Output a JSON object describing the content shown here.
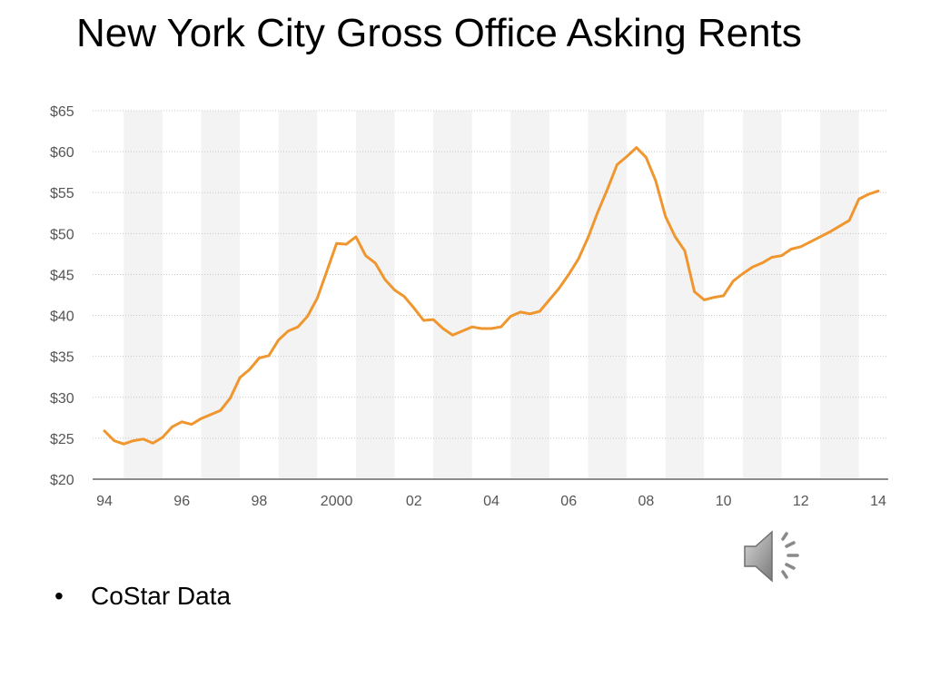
{
  "slide": {
    "title": "New York City Gross Office Asking Rents",
    "bullets": [
      {
        "marker": "•",
        "text": "CoStar Data"
      }
    ],
    "media_icon": "speaker-icon"
  },
  "chart_data": {
    "type": "line",
    "title": "",
    "xlabel": "",
    "ylabel": "",
    "x_tick_labels": [
      "94",
      "96",
      "98",
      "2000",
      "02",
      "04",
      "06",
      "08",
      "10",
      "12",
      "14"
    ],
    "x_tick_values": [
      1994,
      1996,
      1998,
      2000,
      2002,
      2004,
      2006,
      2008,
      2010,
      2012,
      2014
    ],
    "xlim": [
      1994,
      2014
    ],
    "y_tick_labels": [
      "$20",
      "$25",
      "$30",
      "$35",
      "$40",
      "$45",
      "$50",
      "$55",
      "$60",
      "$65"
    ],
    "y_tick_values": [
      20,
      25,
      30,
      35,
      40,
      45,
      50,
      55,
      60,
      65
    ],
    "ylim": [
      20,
      65
    ],
    "grid": "horizontal dotted lines, alternating shaded year bands",
    "series": [
      {
        "color": "#F0962E",
        "points": [
          [
            1994.0,
            25.9
          ],
          [
            1994.25,
            24.7
          ],
          [
            1994.5,
            24.3
          ],
          [
            1994.75,
            24.7
          ],
          [
            1995.0,
            24.9
          ],
          [
            1995.25,
            24.4
          ],
          [
            1995.5,
            25.1
          ],
          [
            1995.75,
            26.4
          ],
          [
            1996.0,
            27.0
          ],
          [
            1996.25,
            26.7
          ],
          [
            1996.5,
            27.4
          ],
          [
            1996.75,
            27.9
          ],
          [
            1997.0,
            28.4
          ],
          [
            1997.25,
            29.9
          ],
          [
            1997.5,
            32.4
          ],
          [
            1997.75,
            33.4
          ],
          [
            1998.0,
            34.8
          ],
          [
            1998.25,
            35.1
          ],
          [
            1998.5,
            37.0
          ],
          [
            1998.75,
            38.1
          ],
          [
            1999.0,
            38.6
          ],
          [
            1999.25,
            39.9
          ],
          [
            1999.5,
            42.1
          ],
          [
            1999.75,
            45.4
          ],
          [
            2000.0,
            48.8
          ],
          [
            2000.25,
            48.7
          ],
          [
            2000.5,
            49.6
          ],
          [
            2000.75,
            47.3
          ],
          [
            2001.0,
            46.4
          ],
          [
            2001.25,
            44.4
          ],
          [
            2001.5,
            43.1
          ],
          [
            2001.75,
            42.3
          ],
          [
            2002.0,
            40.9
          ],
          [
            2002.25,
            39.4
          ],
          [
            2002.5,
            39.5
          ],
          [
            2002.75,
            38.4
          ],
          [
            2003.0,
            37.6
          ],
          [
            2003.25,
            38.1
          ],
          [
            2003.5,
            38.6
          ],
          [
            2003.75,
            38.4
          ],
          [
            2004.0,
            38.4
          ],
          [
            2004.25,
            38.6
          ],
          [
            2004.5,
            39.9
          ],
          [
            2004.75,
            40.4
          ],
          [
            2005.0,
            40.2
          ],
          [
            2005.25,
            40.5
          ],
          [
            2005.5,
            41.9
          ],
          [
            2005.75,
            43.3
          ],
          [
            2006.0,
            45.0
          ],
          [
            2006.25,
            46.9
          ],
          [
            2006.5,
            49.5
          ],
          [
            2006.75,
            52.6
          ],
          [
            2007.0,
            55.4
          ],
          [
            2007.25,
            58.4
          ],
          [
            2007.5,
            59.4
          ],
          [
            2007.75,
            60.5
          ],
          [
            2008.0,
            59.3
          ],
          [
            2008.25,
            56.4
          ],
          [
            2008.5,
            52.1
          ],
          [
            2008.75,
            49.6
          ],
          [
            2009.0,
            47.9
          ],
          [
            2009.25,
            42.9
          ],
          [
            2009.5,
            41.9
          ],
          [
            2009.75,
            42.2
          ],
          [
            2010.0,
            42.4
          ],
          [
            2010.25,
            44.2
          ],
          [
            2010.5,
            45.1
          ],
          [
            2010.75,
            45.9
          ],
          [
            2011.0,
            46.4
          ],
          [
            2011.25,
            47.1
          ],
          [
            2011.5,
            47.3
          ],
          [
            2011.75,
            48.1
          ],
          [
            2012.0,
            48.4
          ],
          [
            2012.25,
            49.0
          ],
          [
            2012.5,
            49.6
          ],
          [
            2012.75,
            50.2
          ],
          [
            2013.0,
            50.9
          ],
          [
            2013.25,
            51.6
          ],
          [
            2013.5,
            54.2
          ],
          [
            2013.75,
            54.8
          ],
          [
            2014.0,
            55.2
          ]
        ]
      }
    ]
  }
}
